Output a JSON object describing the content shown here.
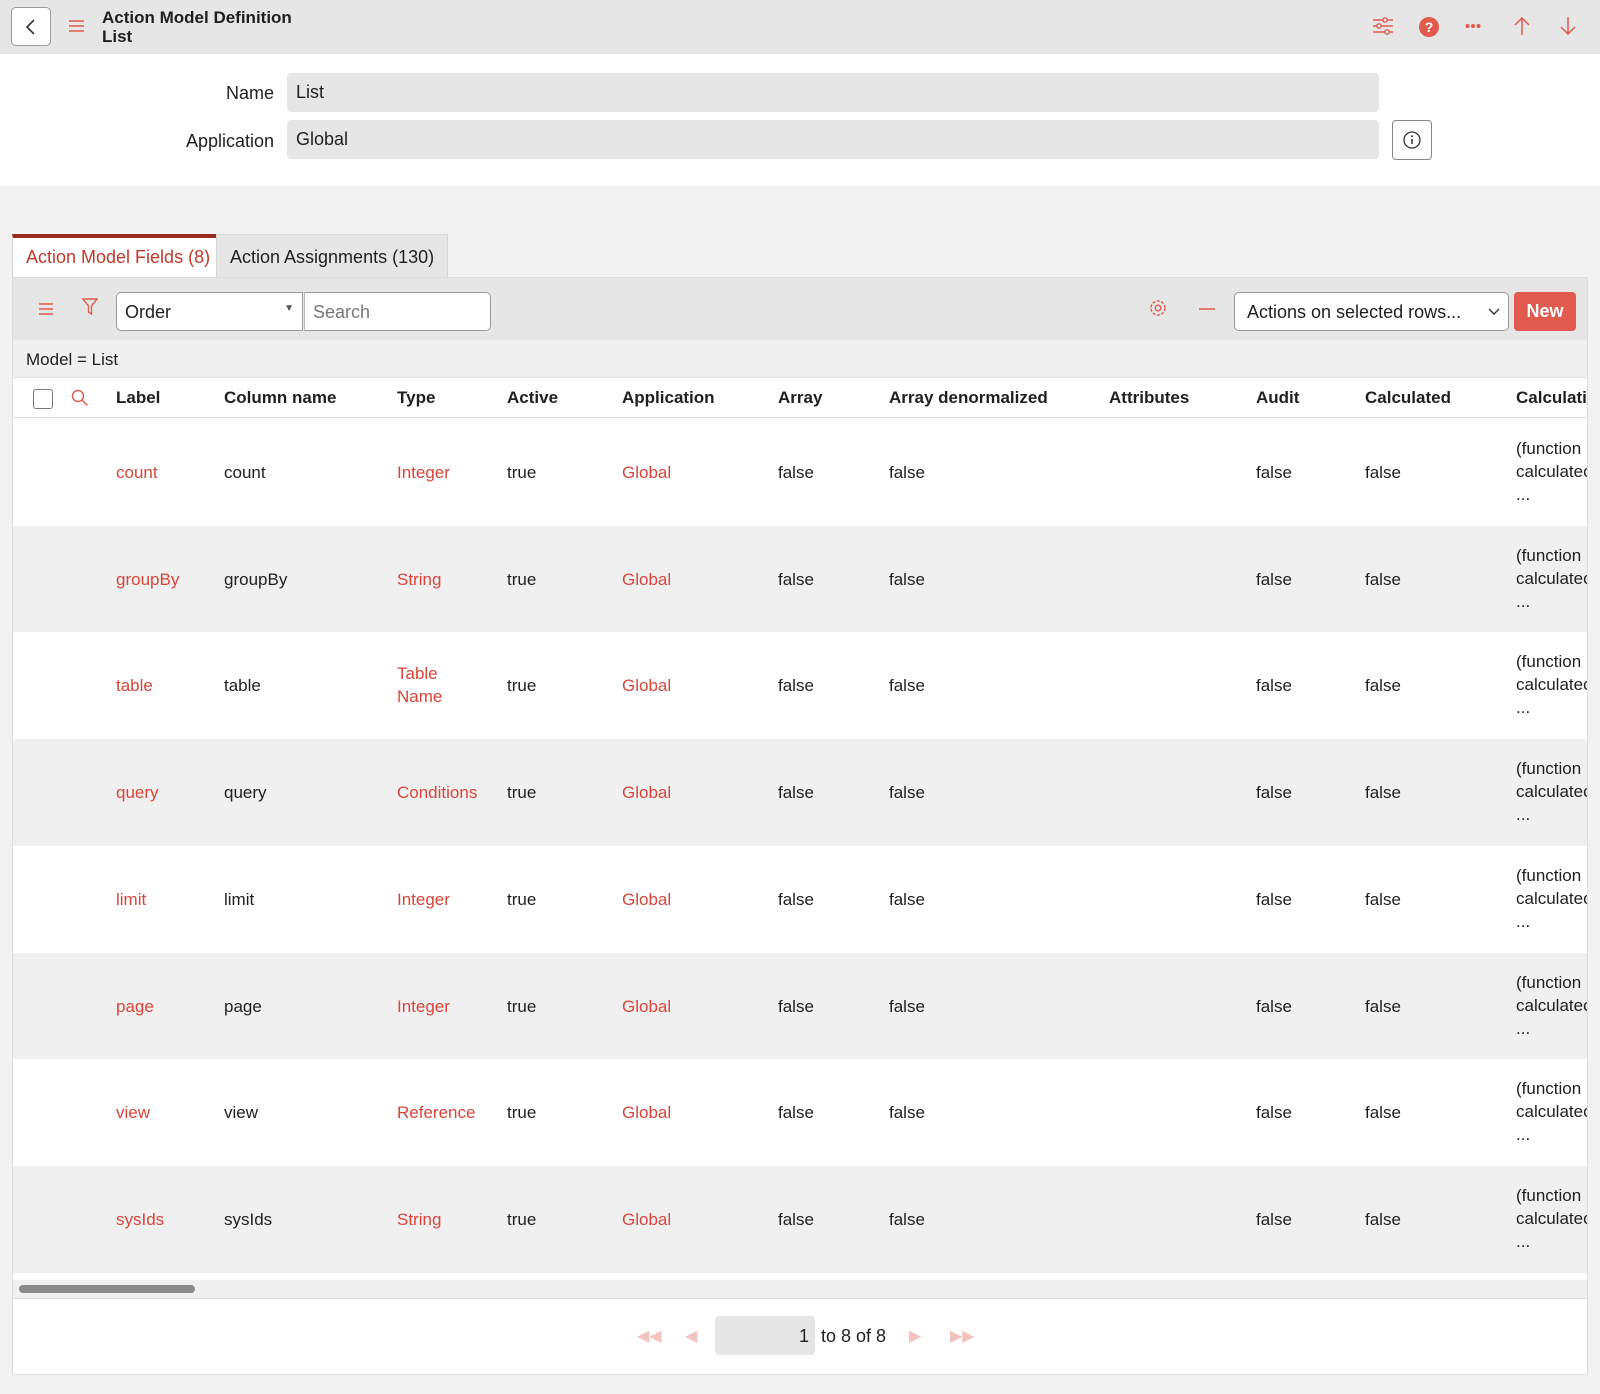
{
  "header": {
    "title_line1": "Action Model Definition",
    "title_line2": "List",
    "icons": [
      "back-icon",
      "menu-icon",
      "sliders-icon",
      "help-icon",
      "more-icon",
      "arrow-up-icon",
      "arrow-down-icon"
    ]
  },
  "form": {
    "name_label": "Name",
    "name_value": "List",
    "application_label": "Application",
    "application_value": "Global"
  },
  "tabs": [
    {
      "label": "Action Model Fields (8)",
      "active": true
    },
    {
      "label": "Action Assignments (130)",
      "active": false
    }
  ],
  "toolbar": {
    "order_value": "Order",
    "search_placeholder": "Search",
    "actions_value": "Actions on selected rows...",
    "new_label": "New"
  },
  "filter": "Model = List",
  "columns": [
    "Label",
    "Column name",
    "Type",
    "Active",
    "Application",
    "Array",
    "Array denormalized",
    "Attributes",
    "Audit",
    "Calculated",
    "Calculati"
  ],
  "rows": [
    {
      "label": "count",
      "column": "count",
      "type": "Integer",
      "active": "true",
      "application": "Global",
      "array": "false",
      "array_denorm": "false",
      "attributes": "",
      "audit": "false",
      "calculated": "false",
      "calc1": "(function",
      "calc2": "calculatec",
      "calc3": "..."
    },
    {
      "label": "groupBy",
      "column": "groupBy",
      "type": "String",
      "active": "true",
      "application": "Global",
      "array": "false",
      "array_denorm": "false",
      "attributes": "",
      "audit": "false",
      "calculated": "false",
      "calc1": "(function",
      "calc2": "calculatec",
      "calc3": "..."
    },
    {
      "label": "table",
      "column": "table",
      "type": "Table Name",
      "active": "true",
      "application": "Global",
      "array": "false",
      "array_denorm": "false",
      "attributes": "",
      "audit": "false",
      "calculated": "false",
      "calc1": "(function",
      "calc2": "calculatec",
      "calc3": "..."
    },
    {
      "label": "query",
      "column": "query",
      "type": "Conditions",
      "active": "true",
      "application": "Global",
      "array": "false",
      "array_denorm": "false",
      "attributes": "",
      "audit": "false",
      "calculated": "false",
      "calc1": "(function",
      "calc2": "calculatec",
      "calc3": "..."
    },
    {
      "label": "limit",
      "column": "limit",
      "type": "Integer",
      "active": "true",
      "application": "Global",
      "array": "false",
      "array_denorm": "false",
      "attributes": "",
      "audit": "false",
      "calculated": "false",
      "calc1": "(function",
      "calc2": "calculatec",
      "calc3": "..."
    },
    {
      "label": "page",
      "column": "page",
      "type": "Integer",
      "active": "true",
      "application": "Global",
      "array": "false",
      "array_denorm": "false",
      "attributes": "",
      "audit": "false",
      "calculated": "false",
      "calc1": "(function",
      "calc2": "calculatec",
      "calc3": "..."
    },
    {
      "label": "view",
      "column": "view",
      "type": "Reference",
      "active": "true",
      "application": "Global",
      "array": "false",
      "array_denorm": "false",
      "attributes": "",
      "audit": "false",
      "calculated": "false",
      "calc1": "(function",
      "calc2": "calculatec",
      "calc3": "..."
    },
    {
      "label": "sysIds",
      "column": "sysIds",
      "type": "String",
      "active": "true",
      "application": "Global",
      "array": "false",
      "array_denorm": "false",
      "attributes": "",
      "audit": "false",
      "calculated": "false",
      "calc1": "(function",
      "calc2": "calculatec",
      "calc3": "..."
    }
  ],
  "pagination": {
    "current": "1",
    "range_text": "to 8 of 8"
  },
  "colors": {
    "accent": "#e05a4e",
    "link": "#d9453a",
    "tab_active": "#c0392b"
  }
}
